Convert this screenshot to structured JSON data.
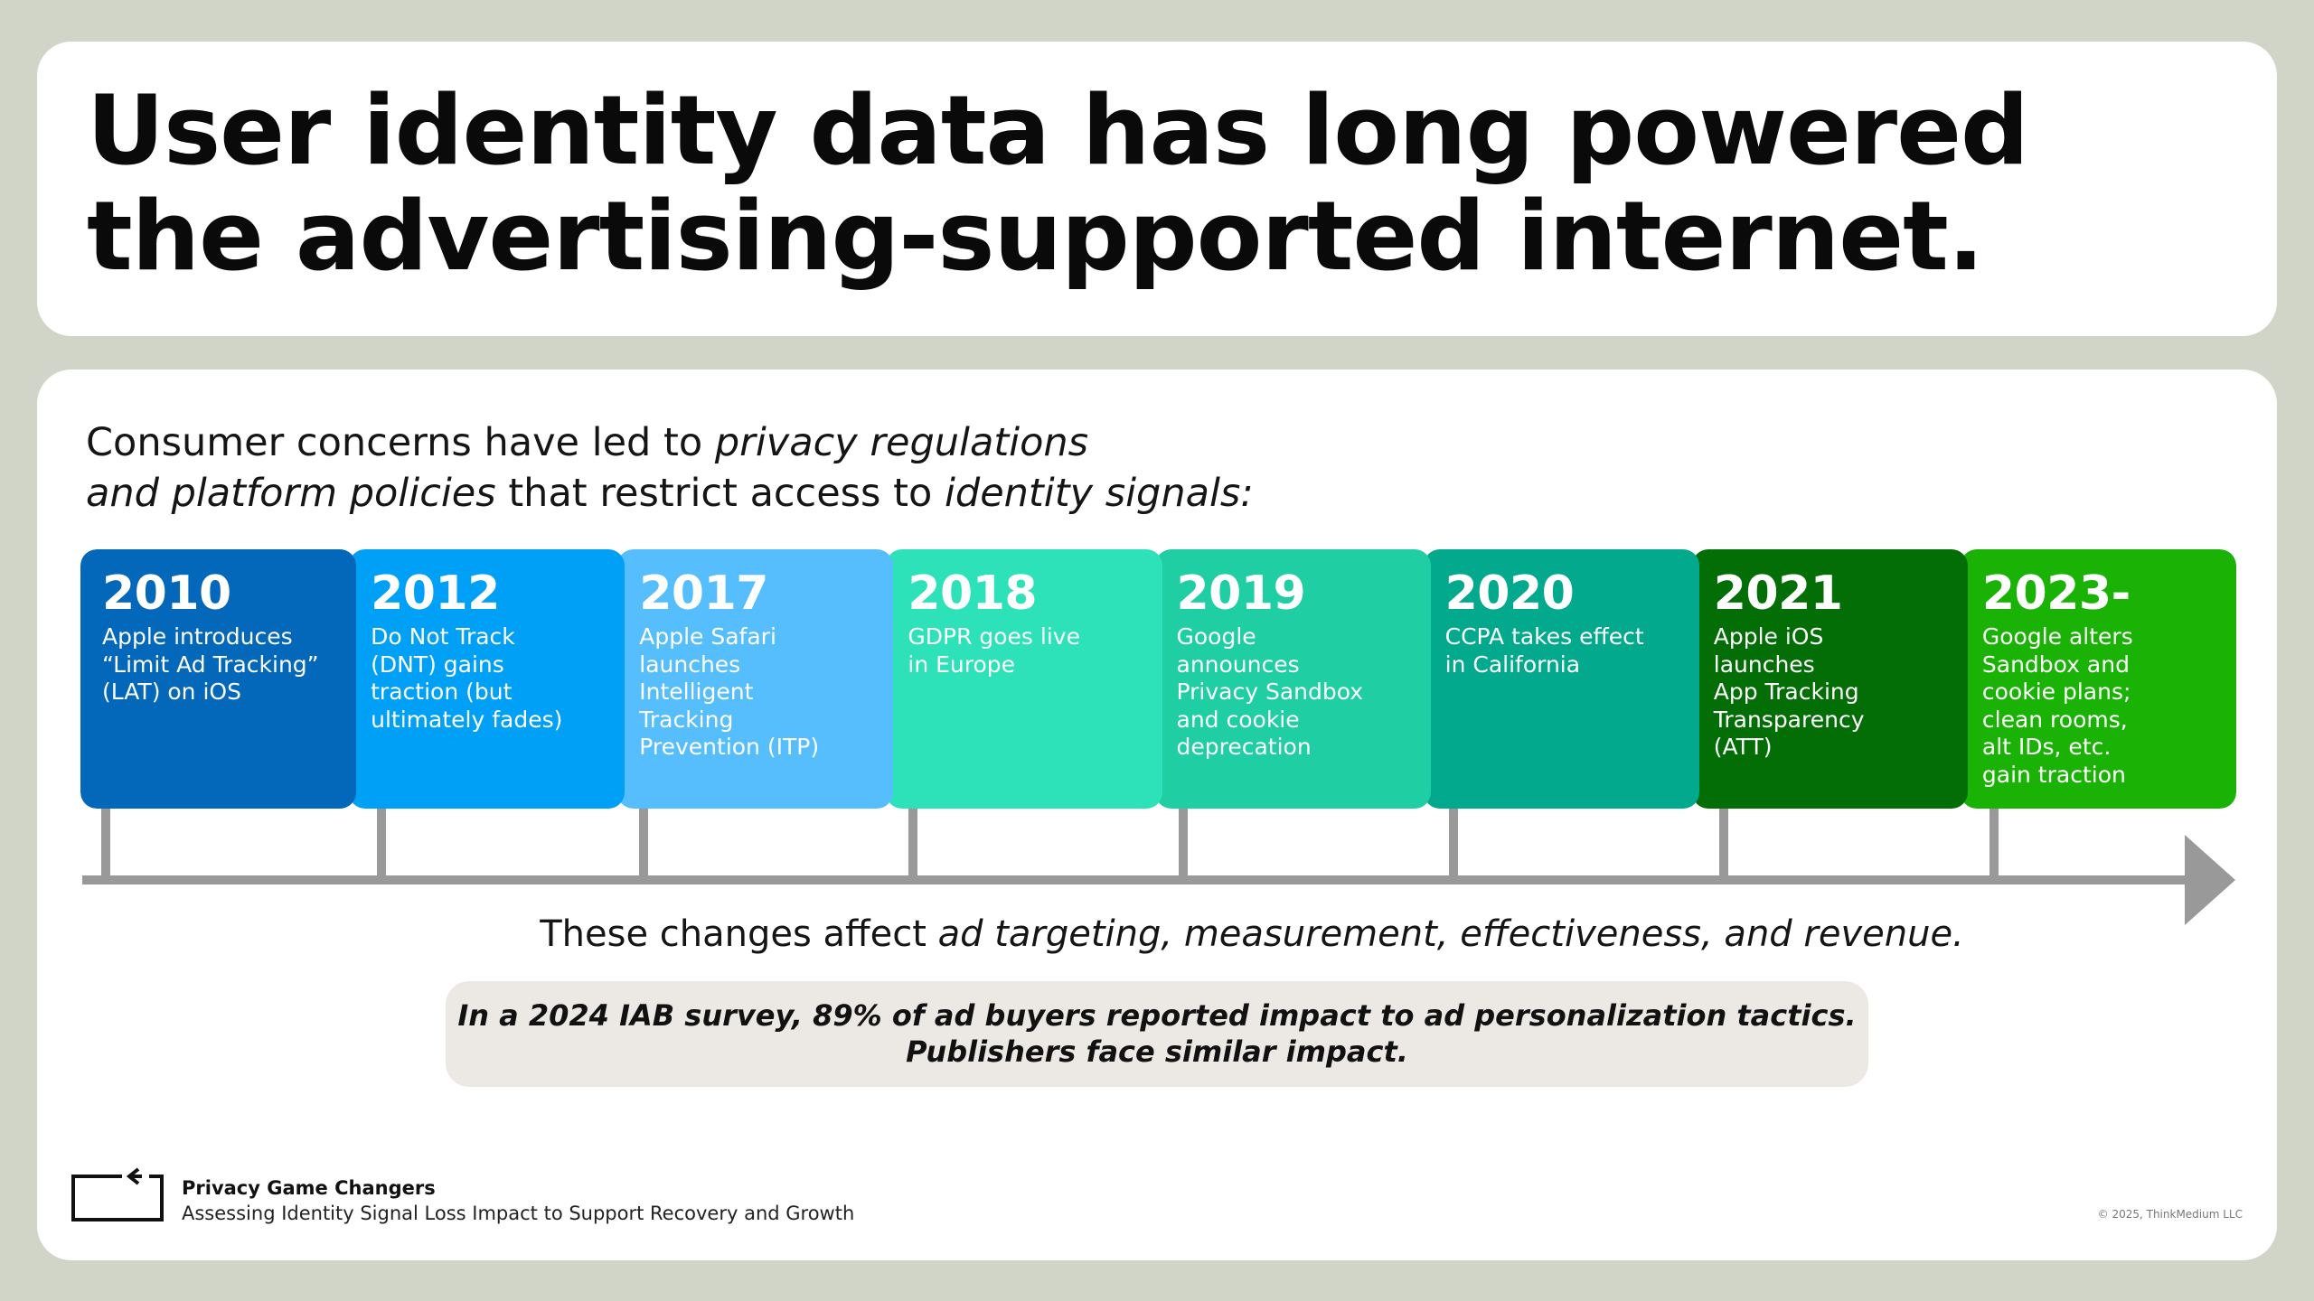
{
  "title": {
    "line1": "User identity data has long powered",
    "line2": "the advertising-supported internet."
  },
  "intro": {
    "line1_plain": "Consumer concerns have led to ",
    "line1_italic": "privacy regulations",
    "line2_italic_a": "and platform policies",
    "line2_plain": " that restrict access to ",
    "line2_italic_b": "identity signals:"
  },
  "timeline": [
    {
      "year": "2010",
      "description": "Apple introduces\n“Limit Ad Tracking”\n(LAT) on iOS",
      "color": "#0367ba"
    },
    {
      "year": "2012",
      "description": "Do Not Track\n(DNT) gains\ntraction (but\nultimately fades)",
      "color": "#01a0f7"
    },
    {
      "year": "2017",
      "description": "Apple Safari\nlaunches\nIntelligent\nTracking\nPrevention (ITP)",
      "color": "#57befe"
    },
    {
      "year": "2018",
      "description": "GDPR goes live\nin Europe",
      "color": "#2de2b9"
    },
    {
      "year": "2019",
      "description": "Google\nannounces\nPrivacy Sandbox\nand cookie\ndeprecation",
      "color": "#1fcea2"
    },
    {
      "year": "2020",
      "description": "CCPA takes effect\nin California",
      "color": "#02a98d"
    },
    {
      "year": "2021",
      "description": "Apple iOS\nlaunches\nApp Tracking\nTransparency\n(ATT)",
      "color": "#036e06"
    },
    {
      "year": "2023-",
      "description": "Google alters\nSandbox and\ncookie plans;\nclean rooms,\nalt IDs, etc.\ngain traction",
      "color": "#1ab305"
    }
  ],
  "affects": {
    "plain": "These changes affect ",
    "italic": "ad targeting, measurement, effectiveness, and revenue."
  },
  "survey": {
    "line1": "In a 2024 IAB survey, 89% of ad buyers reported impact to ad personalization tactics.",
    "line2": "Publishers face similar impact."
  },
  "footer": {
    "title": "Privacy Game Changers",
    "subtitle": "Assessing Identity Signal Loss Impact to Support Recovery and Growth",
    "copyright": "© 2025, ThinkMedium LLC"
  },
  "colors": {
    "background": "#d0d5c8",
    "card": "#ffffff",
    "axis": "#999999",
    "survey_box": "#ece8e4"
  }
}
